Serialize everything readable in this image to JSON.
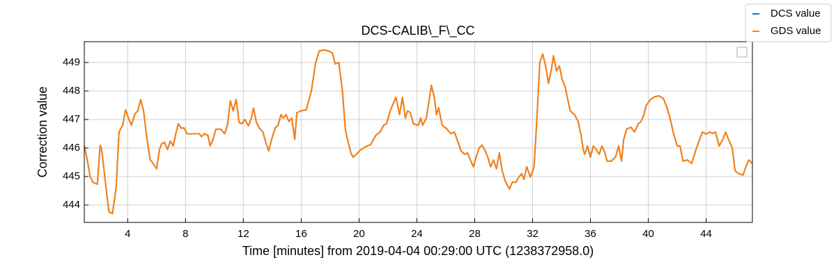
{
  "chart_data": {
    "type": "line",
    "title": "DCS-CALIB\\_F\\_CC",
    "x_label": "Time [minutes] from 2019-04-04 00:29:00 UTC (1238372958.0)",
    "y_label": "Correction value",
    "xlim": [
      1.0,
      47.2
    ],
    "ylim": [
      443.39,
      449.73
    ],
    "xticks": [
      4,
      8,
      12,
      16,
      20,
      24,
      28,
      32,
      36,
      40,
      44
    ],
    "yticks": [
      444,
      445,
      446,
      447,
      448,
      449
    ],
    "grid": true,
    "legend": "upper right",
    "x": [
      1.0,
      1.2,
      1.4,
      1.6,
      1.9,
      2.1,
      2.2,
      2.45,
      2.7,
      2.95,
      3.2,
      3.4,
      3.65,
      3.85,
      4.05,
      4.25,
      4.5,
      4.7,
      4.9,
      5.1,
      5.3,
      5.55,
      5.75,
      6.0,
      6.2,
      6.35,
      6.55,
      6.75,
      6.95,
      7.15,
      7.3,
      7.5,
      7.7,
      7.9,
      8.1,
      8.6,
      8.95,
      9.1,
      9.3,
      9.55,
      9.7,
      9.9,
      10.1,
      10.45,
      10.7,
      10.9,
      11.1,
      11.3,
      11.5,
      11.7,
      11.9,
      12.1,
      12.35,
      12.55,
      12.7,
      12.9,
      13.1,
      13.35,
      13.55,
      13.75,
      13.95,
      14.2,
      14.4,
      14.6,
      14.75,
      14.95,
      15.15,
      15.35,
      15.55,
      15.7,
      15.95,
      16.35,
      16.7,
      17.0,
      17.25,
      17.65,
      17.9,
      18.15,
      18.35,
      18.6,
      18.85,
      19.05,
      19.2,
      19.45,
      19.6,
      19.85,
      20.1,
      20.45,
      20.8,
      21.15,
      21.45,
      21.7,
      21.9,
      22.15,
      22.35,
      22.55,
      22.8,
      23.0,
      23.2,
      23.35,
      23.55,
      23.75,
      24.1,
      24.25,
      24.4,
      24.65,
      24.85,
      25.0,
      25.2,
      25.35,
      25.5,
      25.75,
      26.05,
      26.35,
      26.6,
      26.85,
      27.05,
      27.3,
      27.5,
      27.7,
      27.9,
      28.1,
      28.3,
      28.5,
      28.7,
      28.9,
      29.1,
      29.3,
      29.5,
      29.7,
      29.9,
      30.1,
      30.4,
      30.6,
      30.85,
      31.05,
      31.25,
      31.4,
      31.6,
      31.85,
      32.1,
      32.3,
      32.5,
      32.7,
      32.9,
      33.1,
      33.3,
      33.45,
      33.65,
      33.85,
      34.05,
      34.25,
      34.4,
      34.6,
      34.9,
      35.15,
      35.35,
      35.5,
      35.6,
      35.8,
      36.0,
      36.2,
      36.4,
      36.6,
      36.8,
      37.0,
      37.15,
      37.45,
      37.75,
      37.95,
      38.15,
      38.3,
      38.5,
      38.8,
      39.05,
      39.3,
      39.5,
      39.7,
      39.85,
      40.15,
      40.45,
      40.75,
      41.05,
      41.3,
      41.5,
      41.75,
      42.0,
      42.2,
      42.4,
      42.7,
      43.0,
      43.3,
      43.55,
      43.75,
      44.0,
      44.25,
      44.45,
      44.65,
      44.9,
      45.15,
      45.35,
      45.55,
      45.8,
      46.0,
      46.25,
      46.55,
      46.75,
      46.95,
      47.2
    ],
    "series": [
      {
        "name": "DCS value",
        "color": "#1f77b4",
        "values": [
          446.07,
          445.6,
          445.0,
          444.8,
          444.73,
          446.1,
          445.95,
          444.85,
          443.76,
          443.7,
          444.6,
          446.56,
          446.8,
          447.34,
          447.05,
          446.8,
          447.2,
          447.3,
          447.7,
          447.3,
          446.44,
          445.6,
          445.46,
          445.27,
          445.95,
          446.15,
          446.2,
          445.95,
          446.24,
          446.07,
          446.44,
          446.85,
          446.7,
          446.7,
          446.5,
          446.5,
          446.5,
          446.4,
          446.5,
          446.44,
          446.07,
          446.3,
          446.66,
          446.66,
          446.5,
          446.8,
          447.66,
          447.3,
          447.7,
          446.9,
          446.85,
          447.0,
          446.78,
          447.05,
          447.4,
          446.9,
          446.7,
          446.56,
          446.2,
          445.9,
          446.3,
          446.7,
          446.8,
          447.17,
          447.05,
          447.17,
          446.93,
          447.05,
          446.3,
          447.24,
          447.3,
          447.34,
          448.0,
          449.0,
          449.41,
          449.44,
          449.4,
          449.34,
          448.95,
          449.0,
          448.0,
          446.66,
          446.3,
          445.8,
          445.68,
          445.8,
          445.93,
          446.05,
          446.12,
          446.44,
          446.56,
          446.8,
          446.85,
          447.3,
          447.54,
          447.78,
          447.17,
          447.78,
          447.05,
          447.3,
          447.24,
          446.85,
          446.8,
          447.05,
          446.8,
          447.05,
          447.7,
          448.2,
          447.78,
          447.17,
          447.41,
          446.8,
          446.68,
          446.5,
          446.56,
          446.2,
          445.9,
          445.78,
          445.83,
          445.58,
          445.34,
          445.68,
          446.0,
          446.1,
          445.93,
          445.68,
          445.34,
          445.58,
          445.27,
          445.83,
          445.2,
          444.85,
          444.56,
          444.8,
          444.8,
          444.98,
          445.1,
          444.9,
          445.34,
          444.98,
          445.34,
          447.05,
          449.0,
          449.3,
          448.88,
          448.27,
          448.76,
          449.24,
          448.7,
          448.88,
          448.39,
          448.15,
          447.78,
          447.3,
          447.17,
          446.93,
          446.44,
          445.95,
          445.78,
          446.07,
          445.68,
          446.07,
          445.95,
          445.78,
          446.07,
          445.83,
          445.54,
          445.54,
          445.7,
          446.07,
          445.54,
          446.3,
          446.66,
          446.73,
          446.56,
          446.85,
          446.93,
          447.17,
          447.49,
          447.7,
          447.8,
          447.83,
          447.73,
          447.41,
          447.05,
          446.5,
          446.07,
          446.07,
          445.54,
          445.58,
          445.46,
          445.95,
          446.3,
          446.56,
          446.49,
          446.56,
          446.51,
          446.56,
          446.07,
          446.3,
          446.56,
          446.3,
          446.02,
          445.2,
          445.1,
          445.05,
          445.34,
          445.58,
          445.46
        ]
      },
      {
        "name": "GDS value",
        "color": "#ff7f0e",
        "values": [
          446.07,
          445.6,
          445.0,
          444.8,
          444.73,
          446.1,
          445.95,
          444.85,
          443.76,
          443.7,
          444.6,
          446.56,
          446.8,
          447.34,
          447.05,
          446.8,
          447.2,
          447.3,
          447.7,
          447.3,
          446.44,
          445.6,
          445.46,
          445.27,
          445.95,
          446.15,
          446.2,
          445.95,
          446.24,
          446.07,
          446.44,
          446.85,
          446.7,
          446.7,
          446.5,
          446.5,
          446.5,
          446.4,
          446.5,
          446.44,
          446.07,
          446.3,
          446.66,
          446.66,
          446.5,
          446.8,
          447.66,
          447.3,
          447.7,
          446.9,
          446.85,
          447.0,
          446.78,
          447.05,
          447.4,
          446.9,
          446.7,
          446.56,
          446.2,
          445.9,
          446.3,
          446.7,
          446.8,
          447.17,
          447.05,
          447.17,
          446.93,
          447.05,
          446.3,
          447.24,
          447.3,
          447.34,
          448.0,
          449.0,
          449.41,
          449.44,
          449.4,
          449.34,
          448.95,
          449.0,
          448.0,
          446.66,
          446.3,
          445.8,
          445.68,
          445.8,
          445.93,
          446.05,
          446.12,
          446.44,
          446.56,
          446.8,
          446.85,
          447.3,
          447.54,
          447.78,
          447.17,
          447.78,
          447.05,
          447.3,
          447.24,
          446.85,
          446.8,
          447.05,
          446.8,
          447.05,
          447.7,
          448.2,
          447.78,
          447.17,
          447.41,
          446.8,
          446.68,
          446.5,
          446.56,
          446.2,
          445.9,
          445.78,
          445.83,
          445.58,
          445.34,
          445.68,
          446.0,
          446.1,
          445.93,
          445.68,
          445.34,
          445.58,
          445.27,
          445.83,
          445.2,
          444.85,
          444.56,
          444.8,
          444.8,
          444.98,
          445.1,
          444.9,
          445.34,
          444.98,
          445.34,
          447.05,
          449.0,
          449.3,
          448.88,
          448.27,
          448.76,
          449.24,
          448.7,
          448.88,
          448.39,
          448.15,
          447.78,
          447.3,
          447.17,
          446.93,
          446.44,
          445.95,
          445.78,
          446.07,
          445.68,
          446.07,
          445.95,
          445.78,
          446.07,
          445.83,
          445.54,
          445.54,
          445.7,
          446.07,
          445.54,
          446.3,
          446.66,
          446.73,
          446.56,
          446.85,
          446.93,
          447.17,
          447.49,
          447.7,
          447.8,
          447.83,
          447.73,
          447.41,
          447.05,
          446.5,
          446.07,
          446.07,
          445.54,
          445.58,
          445.46,
          445.95,
          446.3,
          446.56,
          446.49,
          446.56,
          446.51,
          446.56,
          446.07,
          446.3,
          446.56,
          446.3,
          446.02,
          445.2,
          445.1,
          445.05,
          445.34,
          445.58,
          445.46
        ]
      }
    ]
  }
}
